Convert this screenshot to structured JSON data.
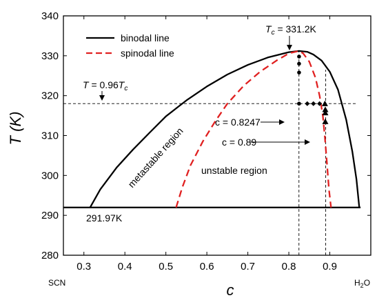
{
  "chart_data": {
    "type": "line",
    "xlabel": "c",
    "ylabel": "T (K)",
    "xlim": [
      0.25,
      1.0
    ],
    "ylim": [
      280,
      340
    ],
    "x_ticks": [
      0.3,
      0.4,
      0.5,
      0.6,
      0.7,
      0.8,
      0.9
    ],
    "y_ticks": [
      280,
      290,
      300,
      310,
      320,
      330,
      340
    ],
    "x_endpoint_labels": {
      "left": "SCN",
      "right_main": "H",
      "right_sub": "2",
      "right_tail": "O"
    },
    "legend_position": "top-left",
    "series": [
      {
        "name": "binodal line",
        "style": "solid",
        "color": "#000000",
        "x": [
          0.315,
          0.34,
          0.38,
          0.42,
          0.46,
          0.5,
          0.55,
          0.6,
          0.65,
          0.7,
          0.75,
          0.8,
          0.825,
          0.845,
          0.86,
          0.88,
          0.9,
          0.92,
          0.94,
          0.955,
          0.965,
          0.972
        ],
        "y": [
          291.97,
          296.5,
          302.0,
          306.5,
          310.7,
          314.8,
          318.8,
          322.3,
          325.3,
          327.7,
          329.6,
          330.9,
          331.2,
          331.0,
          330.3,
          328.8,
          326.0,
          321.5,
          314.0,
          306.0,
          299.0,
          291.97
        ]
      },
      {
        "name": "spinodal line",
        "style": "dashed",
        "color": "#e02020",
        "x": [
          0.525,
          0.54,
          0.56,
          0.59,
          0.62,
          0.65,
          0.69,
          0.73,
          0.77,
          0.8,
          0.82,
          0.825,
          0.835,
          0.85,
          0.865,
          0.875,
          0.883,
          0.888,
          0.893,
          0.898,
          0.903
        ],
        "y": [
          291.97,
          297.0,
          302.5,
          308.5,
          313.5,
          318.0,
          322.5,
          326.0,
          328.8,
          330.6,
          331.1,
          331.2,
          330.6,
          328.5,
          324.5,
          320.0,
          315.0,
          309.5,
          303.0,
          296.5,
          291.97
        ]
      }
    ],
    "horizontal_line_dashed": {
      "y": 318.0,
      "x_from": 0.25,
      "x_to": 0.965
    },
    "horizontal_line_solid": {
      "y": 291.97,
      "x_from": 0.25,
      "x_to": 0.975
    },
    "vertical_lines_dashed": [
      {
        "x": 0.8247,
        "y_from": 280,
        "y_to": 331.2
      },
      {
        "x": 0.89,
        "y_from": 280,
        "y_to": 326.5
      }
    ],
    "markers_circles": [
      {
        "x": 0.825,
        "y": 329.8
      },
      {
        "x": 0.825,
        "y": 328.0
      },
      {
        "x": 0.825,
        "y": 325.8
      },
      {
        "x": 0.825,
        "y": 318.0
      }
    ],
    "markers_diamonds": [
      {
        "x": 0.845,
        "y": 318.0
      },
      {
        "x": 0.86,
        "y": 318.0
      },
      {
        "x": 0.875,
        "y": 318.0
      }
    ],
    "markers_triangles": [
      {
        "x": 0.888,
        "y": 318.0
      },
      {
        "x": 0.889,
        "y": 316.5
      },
      {
        "x": 0.889,
        "y": 315.7
      },
      {
        "x": 0.889,
        "y": 313.5
      }
    ],
    "annotations": {
      "tc_label": {
        "main": "T",
        "sub": "c",
        "rest": " = 331.2K"
      },
      "t096_label": {
        "main": "T",
        "rest": " = 0.96",
        "tail": "T",
        "sub": "c"
      },
      "c8247_label": "c = 0.8247",
      "c89_label": "c = 0.89",
      "metastable_label": "metastable region",
      "unstable_label": "unstable region",
      "bottom_temp_label": "291.97K"
    }
  }
}
